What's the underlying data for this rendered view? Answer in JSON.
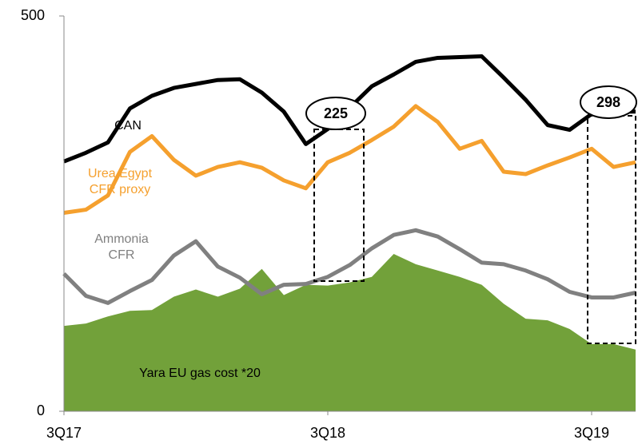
{
  "chart_data": {
    "type": "line",
    "x": [
      0,
      1,
      2,
      3,
      4,
      5,
      6,
      7,
      8,
      9,
      10,
      11,
      12,
      13,
      14,
      15,
      16,
      17,
      18,
      19,
      20,
      21,
      22,
      23,
      24,
      25,
      26
    ],
    "xlim": [
      0,
      26
    ],
    "xticks": [
      {
        "value": 0,
        "label": "3Q17"
      },
      {
        "value": 12,
        "label": "3Q18"
      },
      {
        "value": 24,
        "label": "3Q19"
      }
    ],
    "ylim": [
      0,
      500
    ],
    "yticks": [
      0,
      500
    ],
    "series": [
      {
        "name": "Yara EU gas cost *20",
        "color": "#72a13a",
        "kind": "area",
        "values": [
          108,
          111,
          120,
          127,
          128,
          145,
          154,
          145,
          155,
          180,
          147,
          160,
          159,
          163,
          170,
          199,
          186,
          178,
          170,
          160,
          136,
          117,
          115,
          104,
          85,
          85,
          78
        ]
      },
      {
        "name": "Ammonia CFR",
        "color": "#808080",
        "kind": "line",
        "values": [
          174,
          146,
          137,
          152,
          166,
          197,
          215,
          183,
          169,
          148,
          160,
          161,
          170,
          185,
          206,
          223,
          229,
          221,
          205,
          188,
          186,
          178,
          167,
          151,
          144,
          144,
          150
        ]
      },
      {
        "name": "Urea Egypt CFR proxy",
        "color": "#f5a02e",
        "kind": "line",
        "values": [
          251,
          255,
          273,
          328,
          348,
          318,
          298,
          309,
          315,
          308,
          292,
          282,
          315,
          327,
          343,
          360,
          386,
          366,
          332,
          342,
          303,
          300,
          311,
          321,
          332,
          309,
          315
        ]
      },
      {
        "name": "CAN",
        "color": "#000000",
        "kind": "line",
        "values": [
          316,
          327,
          340,
          383,
          399,
          409,
          414,
          419,
          420,
          403,
          379,
          338,
          357,
          384,
          411,
          426,
          442,
          447,
          448,
          449,
          422,
          394,
          362,
          356,
          376,
          379,
          379
        ]
      }
    ],
    "annotations": [
      "225",
      "298"
    ]
  }
}
